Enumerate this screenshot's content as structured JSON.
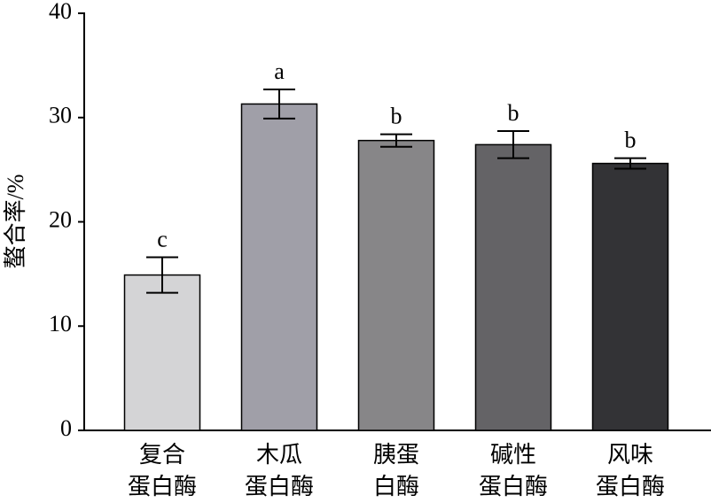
{
  "chart_data": {
    "type": "bar",
    "ylabel": "螯合率/%",
    "categories": [
      [
        "复合",
        "蛋白酶"
      ],
      [
        "木瓜",
        "蛋白酶"
      ],
      [
        "胰蛋",
        "白酶"
      ],
      [
        "碱性",
        "蛋白酶"
      ],
      [
        "风味",
        "蛋白酶"
      ]
    ],
    "values": [
      14.9,
      31.3,
      27.8,
      27.4,
      25.6
    ],
    "errors": [
      1.7,
      1.4,
      0.6,
      1.3,
      0.5
    ],
    "annotations": [
      "c",
      "a",
      "b",
      "b",
      "b"
    ],
    "colors": [
      "#d4d4d6",
      "#a09fa8",
      "#878688",
      "#646366",
      "#333336"
    ],
    "ylim": [
      0,
      40
    ],
    "yticks": [
      0,
      10,
      20,
      30,
      40
    ],
    "grid": false
  }
}
